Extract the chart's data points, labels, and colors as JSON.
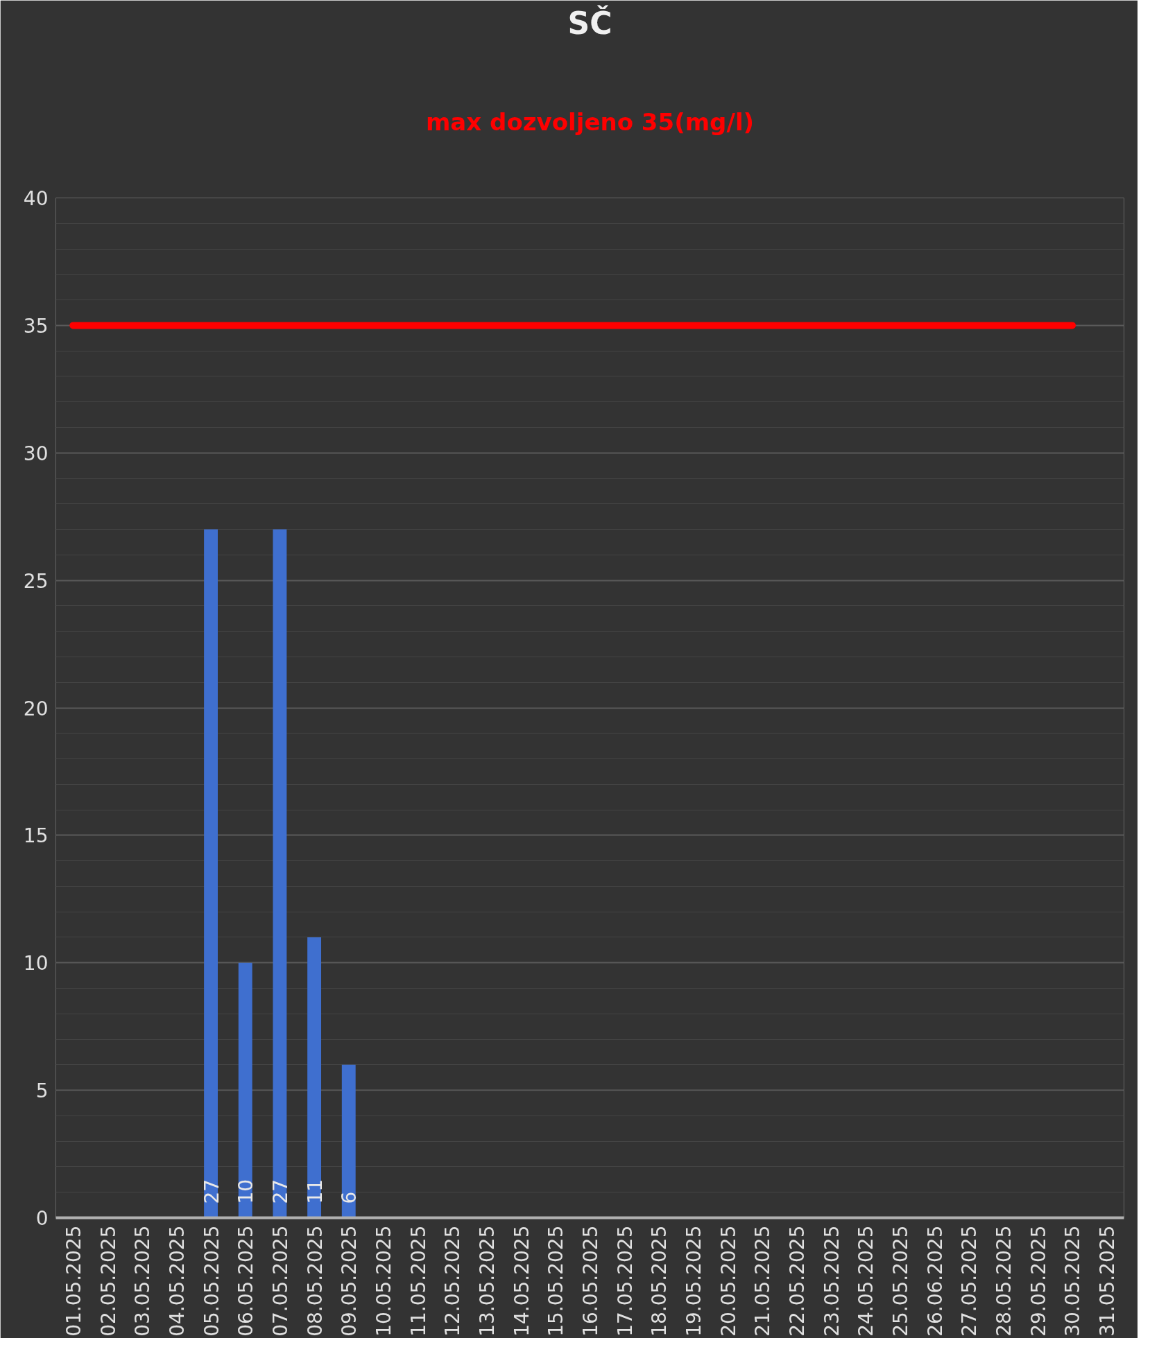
{
  "chart_data": {
    "type": "bar",
    "title": "SČ",
    "subtitle": "max dozvoljeno 35(mg/l)",
    "categories": [
      "01.05.2025",
      "02.05.2025",
      "03.05.2025",
      "04.05.2025",
      "05.05.2025",
      "06.05.2025",
      "07.05.2025",
      "08.05.2025",
      "09.05.2025",
      "10.05.2025",
      "11.05.2025",
      "12.05.2025",
      "13.05.2025",
      "14.05.2025",
      "15.05.2025",
      "16.05.2025",
      "17.05.2025",
      "18.05.2025",
      "19.05.2025",
      "20.05.2025",
      "21.05.2025",
      "22.05.2025",
      "23.05.2025",
      "24.05.2025",
      "25.05.2025",
      "26.06.2025",
      "27.05.2025",
      "28.05.2025",
      "29.05.2025",
      "30.05.2025",
      "31.05.2025"
    ],
    "series": [
      {
        "color": "#3f6fcf",
        "values": [
          null,
          null,
          null,
          null,
          27,
          10,
          27,
          11,
          6,
          null,
          null,
          null,
          null,
          null,
          null,
          null,
          null,
          null,
          null,
          null,
          null,
          null,
          null,
          null,
          null,
          null,
          null,
          null,
          null,
          null,
          null
        ],
        "value_labels": [
          null,
          null,
          null,
          null,
          "27",
          "10",
          "27",
          "11",
          "6",
          null,
          null,
          null,
          null,
          null,
          null,
          null,
          null,
          null,
          null,
          null,
          null,
          null,
          null,
          null,
          null,
          null,
          null,
          null,
          null,
          null,
          null
        ]
      },
      {
        "type": "line",
        "color": "#ff0000",
        "values": [
          35,
          35,
          35,
          35,
          35,
          35,
          35,
          35,
          35,
          35,
          35,
          35,
          35,
          35,
          35,
          35,
          35,
          35,
          35,
          35,
          35,
          35,
          35,
          35,
          35,
          35,
          35,
          35,
          35,
          35,
          null
        ]
      }
    ],
    "ylim": [
      0,
      40
    ],
    "yticks": [
      0,
      5,
      10,
      15,
      20,
      25,
      30,
      35,
      40
    ],
    "grid": "y"
  }
}
